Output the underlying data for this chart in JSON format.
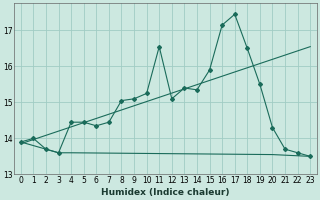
{
  "xlabel": "Humidex (Indice chaleur)",
  "bg_color": "#cce8e0",
  "grid_color": "#a0ccc4",
  "line_color": "#1a6b5a",
  "xlim": [
    -0.5,
    23.5
  ],
  "ylim": [
    13.0,
    17.75
  ],
  "yticks": [
    13,
    14,
    15,
    16,
    17
  ],
  "xticks": [
    0,
    1,
    2,
    3,
    4,
    5,
    6,
    7,
    8,
    9,
    10,
    11,
    12,
    13,
    14,
    15,
    16,
    17,
    18,
    19,
    20,
    21,
    22,
    23
  ],
  "main_x": [
    0,
    1,
    2,
    3,
    4,
    5,
    6,
    7,
    8,
    9,
    10,
    11,
    12,
    13,
    14,
    15,
    16,
    17,
    18,
    19,
    20,
    21,
    22,
    23
  ],
  "main_y": [
    13.9,
    14.0,
    13.7,
    13.6,
    14.45,
    14.45,
    14.35,
    14.45,
    15.05,
    15.1,
    15.25,
    16.55,
    15.1,
    15.4,
    15.35,
    15.9,
    17.15,
    17.45,
    16.5,
    15.5,
    14.3,
    13.7,
    13.6,
    13.5
  ],
  "trend_x": [
    0,
    23
  ],
  "trend_y": [
    13.85,
    16.55
  ],
  "flat_x": [
    0,
    3,
    4,
    20,
    23
  ],
  "flat_y": [
    13.9,
    13.6,
    13.6,
    13.55,
    13.5
  ]
}
